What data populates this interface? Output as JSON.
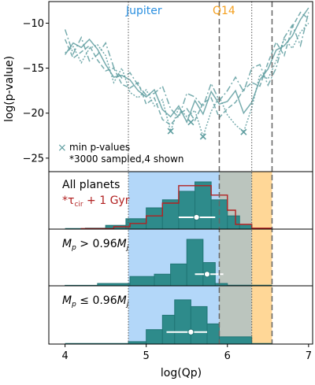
{
  "colors": {
    "line": "#5f9ea0",
    "hist_fill": "#2e8b8b",
    "hist_edge": "#207575",
    "step_red": "#b22222",
    "region_blue": "#99c9f7",
    "region_orange": "#ffd591",
    "region_overlap": "#b7c2ba",
    "marker_white": "#ffffff",
    "text_jupiter": "#2a8fe0",
    "text_q14": "#f4a020",
    "text_red": "#b22222"
  },
  "chart_data": {
    "type": "line",
    "xlabel": "log(Qp)",
    "xlim": [
      3.8,
      7.05
    ],
    "xticks": [
      4,
      5,
      6,
      7
    ],
    "vlines": {
      "dotted": [
        4.78,
        6.3
      ],
      "dashed": [
        5.9,
        6.55
      ]
    },
    "regions": {
      "jupiter": [
        4.78,
        5.9
      ],
      "overlap": [
        5.9,
        6.3
      ],
      "q14": [
        6.3,
        6.55
      ]
    },
    "top_panel": {
      "ylabel": "log(p-value)",
      "ylim": [
        -26.5,
        -7.6
      ],
      "yticks": [
        -10,
        -15,
        -20,
        -25
      ],
      "region_labels": [
        "Jupiter",
        "Q14"
      ],
      "legend": [
        "min p-values",
        "*3000 sampled,4 shown"
      ],
      "x": [
        4.0,
        4.1,
        4.2,
        4.3,
        4.4,
        4.5,
        4.6,
        4.7,
        4.8,
        4.9,
        5.0,
        5.1,
        5.2,
        5.3,
        5.4,
        5.5,
        5.6,
        5.7,
        5.8,
        5.9,
        6.0,
        6.1,
        6.2,
        6.3,
        6.4,
        6.5,
        6.6,
        6.7,
        6.8,
        6.9,
        7.0
      ],
      "series": [
        {
          "values": [
            -13.5,
            -12.2,
            -12.7,
            -11.8,
            -12.9,
            -14.6,
            -16.0,
            -15.8,
            -16.3,
            -17.5,
            -18.2,
            -17.4,
            -19.6,
            -20.4,
            -19.2,
            -21.0,
            -18.6,
            -20.1,
            -17.6,
            -19.0,
            -18.7,
            -17.5,
            -20.0,
            -18.8,
            -16.3,
            -15.1,
            -13.0,
            -12.5,
            -11.4,
            -9.6,
            -8.3
          ]
        },
        {
          "values": [
            -11.8,
            -13.9,
            -13.2,
            -12.5,
            -14.1,
            -15.3,
            -15.0,
            -16.8,
            -17.2,
            -16.6,
            -19.0,
            -18.3,
            -20.7,
            -21.3,
            -20.2,
            -19.5,
            -20.8,
            -18.9,
            -18.3,
            -20.5,
            -19.5,
            -18.8,
            -17.4,
            -16.6,
            -17.0,
            -14.4,
            -12.1,
            -13.6,
            -10.4,
            -8.8,
            -9.5
          ]
        },
        {
          "values": [
            -13.3,
            -12.6,
            -14.4,
            -12.8,
            -12.4,
            -13.6,
            -16.6,
            -15.0,
            -17.7,
            -18.3,
            -17.4,
            -19.2,
            -18.5,
            -22.0,
            -19.4,
            -20.4,
            -19.7,
            -22.6,
            -19.8,
            -18.2,
            -20.2,
            -21.3,
            -22.1,
            -19.4,
            -15.7,
            -16.2,
            -14.2,
            -11.7,
            -12.8,
            -11.0,
            -10.0
          ]
        },
        {
          "values": [
            -10.7,
            -13.4,
            -11.6,
            -14.2,
            -13.5,
            -12.2,
            -14.9,
            -16.1,
            -15.5,
            -16.9,
            -18.0,
            -17.8,
            -17.0,
            -19.5,
            -20.5,
            -17.8,
            -18.2,
            -19.3,
            -16.7,
            -18.6,
            -17.5,
            -16.0,
            -17.6,
            -15.0,
            -14.6,
            -16.9,
            -15.0,
            -11.6,
            -10.2,
            -12.5,
            -8.8
          ]
        }
      ],
      "min_points": [
        {
          "x": 5.3,
          "y": -22.0
        },
        {
          "x": 5.7,
          "y": -22.6
        },
        {
          "x": 6.2,
          "y": -22.1
        },
        {
          "x": 5.55,
          "y": -21.0
        }
      ]
    },
    "hist_panels": [
      {
        "title": "All planets",
        "annotation": "*τcir + 1 Gyr",
        "bin_edges": [
          4.0,
          4.25,
          4.5,
          4.75,
          5.0,
          5.2,
          5.4,
          5.6,
          5.8,
          6.0,
          6.15,
          6.3,
          6.55
        ],
        "counts": [
          0.0,
          0.02,
          0.08,
          0.22,
          0.45,
          0.62,
          0.8,
          1.0,
          0.62,
          0.28,
          0.1,
          0.0
        ],
        "step_edges": [
          4.2,
          4.6,
          4.8,
          5.0,
          5.2,
          5.4,
          5.8,
          6.0,
          6.1,
          6.3,
          6.55
        ],
        "step_counts": [
          0.01,
          0.05,
          0.12,
          0.28,
          0.55,
          0.92,
          0.72,
          0.4,
          0.1,
          0.02
        ],
        "point": {
          "x": 5.62,
          "xerr": [
            5.4,
            5.85
          ]
        }
      },
      {
        "title": "M_p > 0.96M_j",
        "bin_edges": [
          4.0,
          4.4,
          4.8,
          5.1,
          5.3,
          5.5,
          5.7,
          5.85,
          6.0,
          6.3,
          6.55
        ],
        "counts": [
          0.01,
          0.05,
          0.2,
          0.25,
          0.47,
          1.0,
          0.5,
          0.05,
          0.0,
          0.0
        ],
        "point": {
          "x": 5.75,
          "xerr": [
            5.6,
            5.95
          ]
        }
      },
      {
        "title": "M_p ≤ 0.96M_j",
        "bin_edges": [
          4.0,
          4.78,
          5.0,
          5.2,
          5.35,
          5.55,
          5.75,
          5.9,
          6.3,
          6.55
        ],
        "counts": [
          0.0,
          0.05,
          0.3,
          0.6,
          0.92,
          0.78,
          0.42,
          0.15,
          0.0
        ],
        "point": {
          "x": 5.55,
          "xerr": [
            5.25,
            5.75
          ]
        }
      }
    ]
  }
}
